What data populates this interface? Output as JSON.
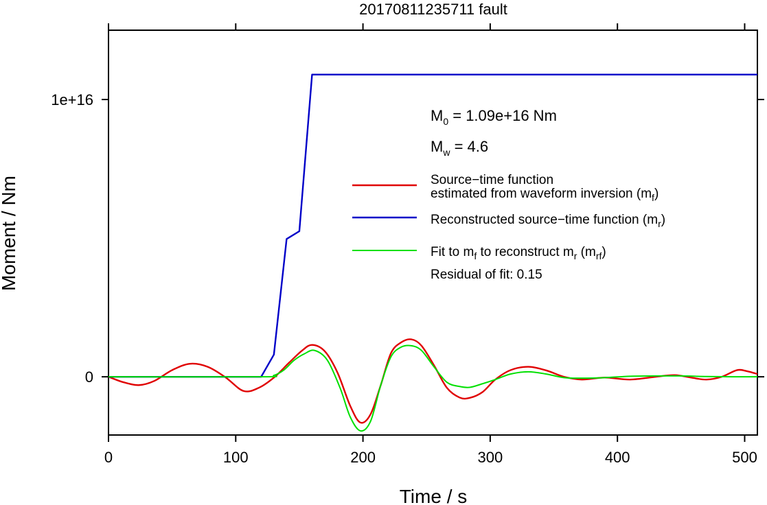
{
  "chart_data": {
    "type": "line",
    "title": "20170811235711 fault",
    "xlabel": "Time / s",
    "ylabel": "Moment / Nm",
    "xlim": [
      0,
      510
    ],
    "ylim": [
      -2100000000000000.0,
      1.25e+16
    ],
    "x_ticks": [
      0,
      100,
      200,
      300,
      400,
      500
    ],
    "x_tick_labels": [
      "0",
      "100",
      "200",
      "300",
      "400",
      "500"
    ],
    "y_ticks": [
      0,
      1e+16
    ],
    "y_tick_labels": [
      "0",
      "1e+16"
    ],
    "grid": false,
    "legend_placement": "right",
    "annotations": {
      "m0_symbol": "M",
      "m0_sub": "0",
      "m0_text": " = 1.09e+16 Nm",
      "mw_symbol": "M",
      "mw_sub": "w",
      "mw_text": " = 4.6",
      "residual": "Residual of fit: 0.15"
    },
    "legend": [
      {
        "line1": "Source−time function",
        "line2_main": "estimated from waveform inversion (m",
        "line2_sub": "f",
        "line2_end": ")",
        "color": "#e00000"
      },
      {
        "line1_main": "Reconstructed source−time function (m",
        "line1_sub": "r",
        "line1_end": ")",
        "color": "#0000c8"
      },
      {
        "part1": "Fit to m",
        "sub1": "f",
        "part2": " to reconstruct m",
        "sub2": "r",
        "part3": " (m",
        "sub3": "rf",
        "part4": ")",
        "color": "#00e000"
      }
    ],
    "series": [
      {
        "key": "mf",
        "color": "#e00000",
        "x": [
          0,
          12,
          24,
          36,
          50,
          64,
          78,
          92,
          106,
          118,
          130,
          142,
          152,
          160,
          170,
          180,
          190,
          198,
          206,
          214,
          222,
          230,
          238,
          246,
          256,
          266,
          276,
          284,
          294,
          304,
          316,
          330,
          344,
          358,
          372,
          390,
          410,
          430,
          445,
          458,
          470,
          482,
          494,
          502,
          510
        ],
        "y": [
          0,
          -200000000000000.0,
          -300000000000000.0,
          -150000000000000.0,
          240000000000000.0,
          470000000000000.0,
          360000000000000.0,
          -20000000000000.0,
          -510000000000000.0,
          -400000000000000.0,
          -30000000000000.0,
          510000000000000.0,
          940000000000000.0,
          1150000000000000.0,
          920000000000000.0,
          150000000000000.0,
          -1050000000000000.0,
          -1650000000000000.0,
          -1350000000000000.0,
          -300000000000000.0,
          850000000000000.0,
          1240000000000000.0,
          1350000000000000.0,
          1120000000000000.0,
          400000000000000.0,
          -400000000000000.0,
          -750000000000000.0,
          -760000000000000.0,
          -550000000000000.0,
          -100000000000000.0,
          240000000000000.0,
          360000000000000.0,
          230000000000000.0,
          0,
          -100000000000000.0,
          -30000000000000.0,
          -100000000000000.0,
          0,
          60000000000000.0,
          -30000000000000.0,
          -100000000000000.0,
          0,
          240000000000000.0,
          200000000000000.0,
          100000000000000.0
        ]
      },
      {
        "key": "mr",
        "color": "#0000c8",
        "x": [
          0,
          120,
          130,
          140,
          150,
          160,
          510
        ],
        "y": [
          0,
          0,
          800000000000000.0,
          4970000000000000.0,
          5250000000000000.0,
          1.09e+16,
          1.09e+16
        ]
      },
      {
        "key": "mrf",
        "color": "#00e000",
        "x": [
          0,
          120,
          130,
          138,
          146,
          154,
          162,
          172,
          182,
          190,
          198,
          206,
          214,
          222,
          230,
          238,
          246,
          256,
          266,
          276,
          284,
          294,
          304,
          316,
          330,
          344,
          358,
          372,
          390,
          410,
          430,
          450,
          470,
          490,
          510
        ],
        "y": [
          0,
          0,
          50000000000000.0,
          250000000000000.0,
          600000000000000.0,
          830000000000000.0,
          950000000000000.0,
          600000000000000.0,
          -400000000000000.0,
          -1450000000000000.0,
          -1950000000000000.0,
          -1600000000000000.0,
          -300000000000000.0,
          720000000000000.0,
          1070000000000000.0,
          1120000000000000.0,
          950000000000000.0,
          350000000000000.0,
          -200000000000000.0,
          -350000000000000.0,
          -380000000000000.0,
          -250000000000000.0,
          -100000000000000.0,
          100000000000000.0,
          180000000000000.0,
          100000000000000.0,
          -30000000000000.0,
          -50000000000000.0,
          -30000000000000.0,
          20000000000000.0,
          30000000000000.0,
          30000000000000.0,
          10000000000000.0,
          0,
          0
        ]
      }
    ]
  }
}
